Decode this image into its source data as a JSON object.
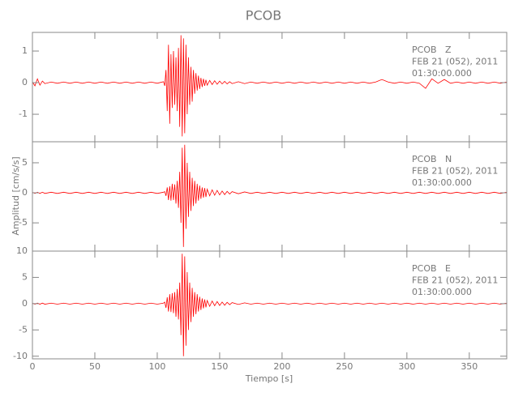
{
  "chart_data": [
    {
      "type": "line",
      "title": "PCOB",
      "annotations": [
        "PCOB   Z",
        "FEB 21 (052), 2011",
        "01:30:00.000"
      ],
      "color": "#ff0000",
      "xlim": [
        0,
        380
      ],
      "ylim": [
        -1.87,
        1.59
      ],
      "yticks": [
        -1,
        0,
        1
      ],
      "x": [
        0,
        2,
        4,
        6,
        8,
        10,
        15,
        20,
        25,
        30,
        35,
        40,
        45,
        50,
        55,
        60,
        65,
        70,
        75,
        80,
        85,
        90,
        95,
        100,
        105,
        106,
        107,
        108,
        109,
        110,
        111,
        112,
        113,
        114,
        115,
        116,
        117,
        118,
        119,
        120,
        121,
        122,
        123,
        124,
        125,
        126,
        127,
        128,
        129,
        130,
        131,
        132,
        133,
        134,
        135,
        136,
        137,
        138,
        139,
        140,
        142,
        144,
        146,
        148,
        150,
        152,
        154,
        156,
        158,
        160,
        165,
        170,
        175,
        180,
        185,
        190,
        195,
        200,
        205,
        210,
        215,
        220,
        225,
        230,
        235,
        240,
        245,
        250,
        255,
        260,
        265,
        270,
        275,
        280,
        285,
        290,
        295,
        300,
        305,
        310,
        315,
        320,
        325,
        330,
        335,
        340,
        345,
        350,
        355,
        360,
        365,
        370,
        375,
        380
      ],
      "values": [
        0.02,
        -0.1,
        0.12,
        -0.08,
        0.05,
        -0.03,
        0.02,
        -0.02,
        0.02,
        -0.02,
        0.02,
        -0.02,
        0.02,
        -0.02,
        0.02,
        -0.02,
        0.02,
        -0.02,
        0.02,
        -0.02,
        0.02,
        -0.02,
        0.02,
        -0.02,
        0.03,
        -0.1,
        0.4,
        -0.9,
        1.2,
        -1.3,
        0.9,
        -0.8,
        1.0,
        -0.7,
        0.8,
        -0.9,
        1.1,
        -1.4,
        1.5,
        -1.7,
        1.4,
        -1.6,
        1.2,
        -1.0,
        0.8,
        -0.7,
        0.5,
        -0.6,
        0.4,
        -0.35,
        0.3,
        -0.25,
        0.22,
        -0.2,
        0.15,
        -0.14,
        0.12,
        -0.1,
        0.09,
        -0.08,
        0.07,
        -0.06,
        0.06,
        -0.05,
        0.05,
        -0.04,
        0.04,
        -0.04,
        0.03,
        -0.03,
        0.03,
        -0.03,
        0.02,
        -0.02,
        0.02,
        -0.02,
        0.02,
        -0.02,
        0.02,
        -0.02,
        0.02,
        -0.02,
        0.02,
        -0.02,
        0.02,
        -0.02,
        0.02,
        -0.02,
        0.02,
        -0.02,
        0.02,
        -0.02,
        0.02,
        0.1,
        0.02,
        -0.02,
        0.02,
        -0.02,
        0.02,
        -0.02,
        -0.18,
        0.12,
        -0.02,
        0.1,
        -0.02,
        0.02,
        -0.02,
        0.02,
        -0.02,
        0.02,
        -0.02,
        0.02,
        -0.02,
        0.02
      ]
    },
    {
      "type": "line",
      "ylabel": "Amplitud [cm/s/s]",
      "annotations": [
        "PCOB   N",
        "FEB 21 (052), 2011",
        "01:30:00.000"
      ],
      "color": "#ff0000",
      "xlim": [
        0,
        380
      ],
      "ylim": [
        -9.7,
        8.5
      ],
      "yticks": [
        -5,
        0,
        5
      ],
      "x": [
        0,
        2,
        4,
        6,
        8,
        10,
        15,
        20,
        25,
        30,
        35,
        40,
        45,
        50,
        55,
        60,
        65,
        70,
        75,
        80,
        85,
        90,
        95,
        100,
        105,
        106,
        107,
        108,
        109,
        110,
        111,
        112,
        113,
        114,
        115,
        116,
        117,
        118,
        119,
        120,
        121,
        122,
        123,
        124,
        125,
        126,
        127,
        128,
        129,
        130,
        131,
        132,
        133,
        134,
        135,
        136,
        137,
        138,
        139,
        140,
        142,
        144,
        146,
        148,
        150,
        152,
        154,
        156,
        158,
        160,
        165,
        170,
        175,
        180,
        185,
        190,
        195,
        200,
        205,
        210,
        215,
        220,
        225,
        230,
        235,
        240,
        245,
        250,
        255,
        260,
        265,
        270,
        275,
        280,
        285,
        290,
        295,
        300,
        305,
        310,
        315,
        320,
        325,
        330,
        335,
        340,
        345,
        350,
        355,
        360,
        365,
        370,
        375,
        380
      ],
      "values": [
        0.1,
        -0.1,
        0.1,
        -0.1,
        0.1,
        -0.1,
        0.1,
        -0.1,
        0.1,
        -0.1,
        0.1,
        -0.1,
        0.1,
        -0.1,
        0.1,
        -0.1,
        0.1,
        -0.1,
        0.1,
        -0.1,
        0.1,
        -0.1,
        0.1,
        -0.1,
        0.1,
        0.2,
        -0.5,
        0.9,
        -1.2,
        1.1,
        -1.3,
        1.5,
        -1.2,
        1.4,
        -1.8,
        2.0,
        -2.5,
        3.5,
        -5,
        7.5,
        -9,
        8,
        -6,
        5,
        -4,
        3.5,
        -3,
        2.5,
        -2.2,
        2,
        -1.8,
        1.5,
        -1.3,
        1.2,
        -1,
        0.9,
        -0.8,
        0.8,
        -0.7,
        0.6,
        -0.5,
        0.5,
        -0.4,
        0.4,
        -0.35,
        0.3,
        -0.3,
        0.25,
        -0.2,
        0.2,
        -0.15,
        0.15,
        -0.1,
        0.1,
        -0.1,
        0.1,
        -0.1,
        0.1,
        -0.1,
        0.1,
        -0.1,
        0.1,
        -0.1,
        0.1,
        -0.1,
        0.1,
        -0.1,
        0.1,
        -0.1,
        0.1,
        -0.1,
        0.1,
        -0.1,
        0.1,
        -0.1,
        0.1,
        -0.1,
        0.1,
        -0.1,
        0.1,
        -0.1,
        0.1,
        -0.1,
        0.1,
        -0.1,
        0.1,
        -0.1,
        0.1,
        -0.1,
        0.1,
        -0.1,
        0.1,
        -0.1,
        0.1
      ]
    },
    {
      "type": "line",
      "xlabel": "Tiempo [s]",
      "annotations": [
        "PCOB   E",
        "FEB 21 (052), 2011",
        "01:30:00.000"
      ],
      "color": "#ff0000",
      "xlim": [
        0,
        380
      ],
      "xticks": [
        0,
        50,
        100,
        150,
        200,
        250,
        300,
        350
      ],
      "ylim": [
        -10.5,
        10
      ],
      "yticks": [
        -10,
        -5,
        0,
        5,
        10
      ],
      "x": [
        0,
        2,
        4,
        6,
        8,
        10,
        15,
        20,
        25,
        30,
        35,
        40,
        45,
        50,
        55,
        60,
        65,
        70,
        75,
        80,
        85,
        90,
        95,
        100,
        105,
        106,
        107,
        108,
        109,
        110,
        111,
        112,
        113,
        114,
        115,
        116,
        117,
        118,
        119,
        120,
        121,
        122,
        123,
        124,
        125,
        126,
        127,
        128,
        129,
        130,
        131,
        132,
        133,
        134,
        135,
        136,
        137,
        138,
        139,
        140,
        142,
        144,
        146,
        148,
        150,
        152,
        154,
        156,
        158,
        160,
        165,
        170,
        175,
        180,
        185,
        190,
        195,
        200,
        205,
        210,
        215,
        220,
        225,
        230,
        235,
        240,
        245,
        250,
        255,
        260,
        265,
        270,
        275,
        280,
        285,
        290,
        295,
        300,
        305,
        310,
        315,
        320,
        325,
        330,
        335,
        340,
        345,
        350,
        355,
        360,
        365,
        370,
        375,
        380
      ],
      "values": [
        0.1,
        -0.1,
        0.1,
        -0.1,
        0.1,
        -0.1,
        0.1,
        -0.1,
        0.1,
        -0.1,
        0.1,
        -0.1,
        0.1,
        -0.1,
        0.1,
        -0.1,
        0.1,
        -0.1,
        0.1,
        -0.1,
        0.1,
        -0.1,
        0.1,
        -0.1,
        0.1,
        0.3,
        -0.8,
        1.2,
        -1.5,
        1.8,
        -1.6,
        2,
        -1.8,
        2.2,
        -2.5,
        2.8,
        -3,
        4,
        -6,
        9.5,
        -10,
        9,
        -8,
        6,
        -5,
        4,
        -3.5,
        3,
        -2.5,
        2.2,
        -2,
        1.8,
        -1.5,
        1.3,
        -1.2,
        1,
        -0.9,
        0.8,
        -0.7,
        0.6,
        -0.5,
        0.5,
        -0.4,
        0.4,
        -0.35,
        0.3,
        -0.3,
        0.25,
        -0.2,
        0.2,
        -0.15,
        0.15,
        -0.1,
        0.1,
        -0.1,
        0.1,
        -0.1,
        0.1,
        -0.1,
        0.1,
        -0.1,
        0.1,
        -0.1,
        0.1,
        -0.1,
        0.1,
        -0.1,
        0.1,
        -0.1,
        0.1,
        -0.1,
        0.1,
        -0.1,
        0.1,
        -0.1,
        0.1,
        -0.1,
        0.1,
        -0.1,
        0.1,
        -0.1,
        0.1,
        -0.1,
        0.1,
        -0.1,
        0.1,
        -0.1,
        0.1,
        -0.1,
        0.1,
        -0.1,
        0.1,
        -0.1,
        0.1
      ]
    }
  ]
}
